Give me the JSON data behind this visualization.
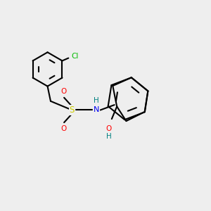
{
  "bg_color": "#eeeeee",
  "bond_color": "#000000",
  "atom_colors": {
    "Cl": "#00bb00",
    "S": "#cccc00",
    "O": "#ff0000",
    "N": "#0000ee",
    "H": "#008080",
    "C": "#000000"
  },
  "bond_width": 1.5,
  "font_size": 7.5
}
